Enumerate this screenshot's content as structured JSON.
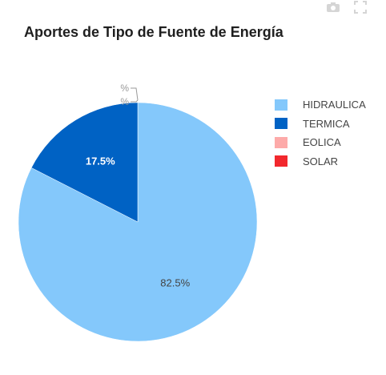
{
  "toolbar": {
    "icons": [
      "camera-icon",
      "expand-icon"
    ]
  },
  "chart_data": {
    "type": "pie",
    "title": "Aportes de Tipo de Fuente de Energía",
    "labels": [
      "HIDRAULICA",
      "TERMICA",
      "EOLICA",
      "SOLAR"
    ],
    "values": [
      82.5,
      17.5,
      0,
      0
    ],
    "data_labels": [
      "82.5%",
      "17.5%",
      "%",
      "%"
    ],
    "colors": [
      "#84c8fb",
      "#0062c4",
      "#fdaaa9",
      "#f2282d"
    ],
    "label_colors": [
      "#444444",
      "#ffffff",
      "#999999",
      "#999999"
    ],
    "legend_position": "top-right"
  }
}
